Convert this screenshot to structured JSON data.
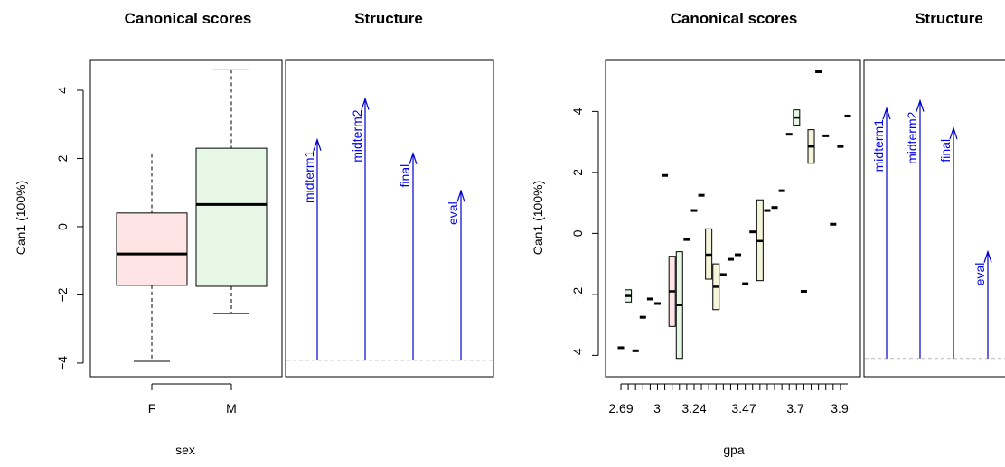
{
  "chart_data": [
    {
      "type": "box",
      "title": "Canonical scores",
      "xlabel": "sex",
      "ylabel": "Can1 (100%)",
      "categories": [
        "F",
        "M"
      ],
      "y_ticks": [
        "−4",
        "−2",
        "0",
        "2",
        "4"
      ],
      "ylim": [
        -4.4,
        4.9
      ],
      "boxes": [
        {
          "category": "F",
          "min": -3.95,
          "q1": -1.72,
          "median": -0.8,
          "q3": 0.4,
          "max": 2.13,
          "color": "#ffe4e6"
        },
        {
          "category": "M",
          "min": -2.55,
          "q1": -1.75,
          "median": 0.65,
          "q3": 2.3,
          "max": 4.6,
          "color": "#e6f7e6"
        }
      ]
    },
    {
      "type": "vectors",
      "title": "Structure",
      "ylim": [
        -4.4,
        4.9
      ],
      "baseline": -3.92,
      "vectors": [
        {
          "label": "midterm1",
          "tip": 2.55
        },
        {
          "label": "midterm2",
          "tip": 3.75
        },
        {
          "label": "final",
          "tip": 2.15
        },
        {
          "label": "eval",
          "tip": 1.05
        }
      ],
      "vector_color": "#0000cc"
    },
    {
      "type": "box",
      "title": "Canonical scores",
      "xlabel": "gpa",
      "ylabel": "Can1 (100%)",
      "x_ticks": [
        "2.69",
        "3",
        "3.24",
        "3.47",
        "3.7",
        "3.9"
      ],
      "minor_tick_count": 31,
      "y_ticks": [
        "−4",
        "−2",
        "0",
        "2",
        "4"
      ],
      "ylim": [
        -4.7,
        5.7
      ],
      "groups": [
        {
          "x": 2.69,
          "median": -3.75
        },
        {
          "x": 2.75,
          "q1": -2.25,
          "median": -2.05,
          "q3": -1.85,
          "color": "#e6f7e6"
        },
        {
          "x": 2.8,
          "median": -3.85
        },
        {
          "x": 2.85,
          "median": -2.75
        },
        {
          "x": 2.9,
          "median": -2.15
        },
        {
          "x": 2.95,
          "median": -2.3
        },
        {
          "x": 3.0,
          "median": 1.9
        },
        {
          "x": 3.05,
          "q1": -3.05,
          "median": -1.9,
          "q3": -0.75,
          "color": "#ffe4e6"
        },
        {
          "x": 3.1,
          "q1": -4.1,
          "median": -2.35,
          "q3": -0.6,
          "color": "#e6f7e6"
        },
        {
          "x": 3.15,
          "median": -0.2
        },
        {
          "x": 3.2,
          "median": 0.75
        },
        {
          "x": 3.24,
          "median": 1.25
        },
        {
          "x": 3.29,
          "q1": -1.5,
          "median": -0.7,
          "q3": 0.15,
          "color": "#f5f5dc"
        },
        {
          "x": 3.33,
          "q1": -2.5,
          "median": -1.75,
          "q3": -1.0,
          "color": "#f5f5dc"
        },
        {
          "x": 3.37,
          "median": -1.35
        },
        {
          "x": 3.41,
          "median": -0.85
        },
        {
          "x": 3.44,
          "median": -0.7
        },
        {
          "x": 3.47,
          "median": -1.65
        },
        {
          "x": 3.51,
          "median": 0.05
        },
        {
          "x": 3.55,
          "q1": -1.55,
          "median": -0.25,
          "q3": 1.1,
          "color": "#f5f5dc"
        },
        {
          "x": 3.58,
          "median": 0.75
        },
        {
          "x": 3.62,
          "median": 0.85
        },
        {
          "x": 3.66,
          "median": 1.4
        },
        {
          "x": 3.7,
          "median": 3.25
        },
        {
          "x": 3.73,
          "q1": 3.55,
          "median": 3.8,
          "q3": 4.05,
          "color": "#e6f7e6"
        },
        {
          "x": 3.76,
          "median": -1.9
        },
        {
          "x": 3.8,
          "q1": 2.3,
          "median": 2.85,
          "q3": 3.4,
          "color": "#f5f5dc"
        },
        {
          "x": 3.83,
          "median": 5.3
        },
        {
          "x": 3.86,
          "median": 3.2
        },
        {
          "x": 3.9,
          "median": 0.3
        },
        {
          "x": 3.93,
          "median": 2.85
        },
        {
          "x": 3.96,
          "median": 3.85
        }
      ]
    },
    {
      "type": "vectors",
      "title": "Structure",
      "ylim": [
        -4.7,
        5.7
      ],
      "baseline": -4.1,
      "vectors": [
        {
          "label": "midterm1",
          "tip": 4.1
        },
        {
          "label": "midterm2",
          "tip": 4.35
        },
        {
          "label": "final",
          "tip": 3.45
        },
        {
          "label": "eval",
          "tip": -0.6
        }
      ],
      "vector_color": "#0000cc"
    }
  ]
}
